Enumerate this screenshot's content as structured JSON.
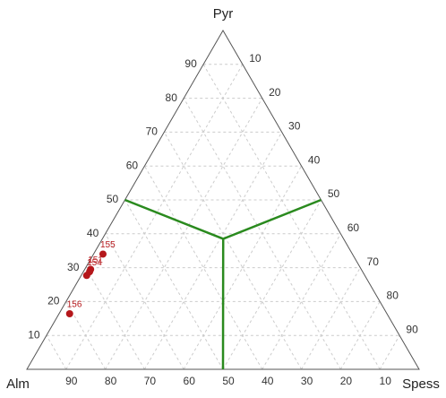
{
  "chart_data": {
    "type": "ternary",
    "axis_labels": {
      "top": "Pyr",
      "left": "Alm",
      "right": "Spess"
    },
    "pyr_ticks": [
      10,
      20,
      30,
      40,
      50,
      60,
      70,
      80,
      90
    ],
    "spess_ticks": [
      10,
      20,
      30,
      40,
      50,
      60,
      70,
      80,
      90
    ],
    "alm_ticks": [
      90,
      80,
      70,
      60,
      50,
      40,
      30,
      20,
      10
    ],
    "grid": true,
    "points": {
      "color": "#b5171b",
      "pyr": [
        34,
        29.5,
        28.8,
        27.7,
        16.4
      ],
      "spess": [
        2.4,
        1.5,
        1.6,
        1.4,
        2.7
      ],
      "labels": [
        "155",
        "151",
        "154",
        null,
        "156"
      ]
    },
    "boundaries": {
      "color": "#2a8a1e",
      "segments": [
        {
          "pyr": [
            50,
            38.5
          ],
          "spess": [
            0,
            30.8
          ]
        },
        {
          "pyr": [
            50,
            38.5
          ],
          "spess": [
            50,
            30.8
          ]
        },
        {
          "pyr": [
            0,
            38.5
          ],
          "spess": [
            50,
            30.8
          ]
        }
      ]
    }
  }
}
